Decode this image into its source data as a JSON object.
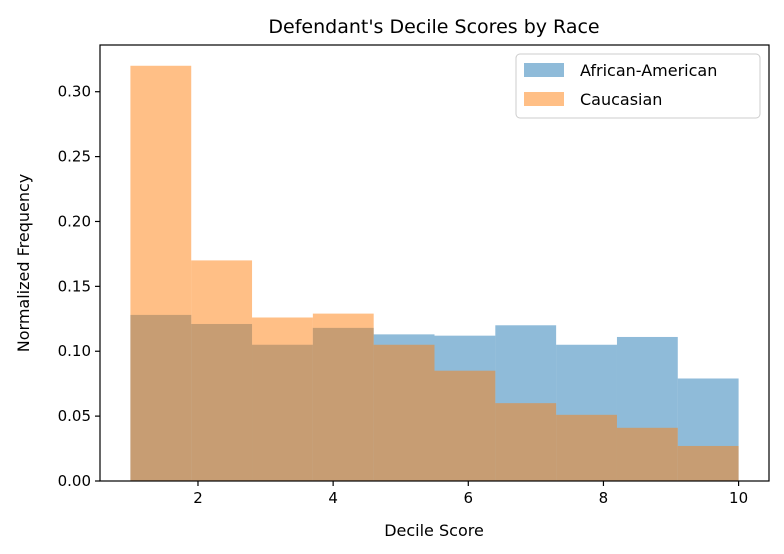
{
  "chart_data": {
    "type": "histogram",
    "title": "Defendant's Decile Scores by Race",
    "xlabel": "Decile Score",
    "ylabel": "Normalized Frequency",
    "xlim": [
      0.55,
      10.45
    ],
    "ylim": [
      0,
      0.336
    ],
    "xticks": [
      2,
      4,
      6,
      8,
      10
    ],
    "yticks": [
      0.0,
      0.05,
      0.1,
      0.15,
      0.2,
      0.25,
      0.3
    ],
    "ytick_labels": [
      "0.00",
      "0.05",
      "0.10",
      "0.15",
      "0.20",
      "0.25",
      "0.30"
    ],
    "bin_edges": [
      1.0,
      1.9,
      2.8,
      3.7,
      4.6,
      5.5,
      6.4,
      7.3,
      8.2,
      9.1,
      10.0
    ],
    "legend_position": "top-right",
    "grid": false,
    "series": [
      {
        "name": "African-American",
        "color": "#1f77b4",
        "alpha": 0.5,
        "values": [
          0.128,
          0.121,
          0.105,
          0.118,
          0.113,
          0.112,
          0.12,
          0.105,
          0.111,
          0.079
        ]
      },
      {
        "name": "Caucasian",
        "color": "#ff7f0e",
        "alpha": 0.5,
        "values": [
          0.32,
          0.17,
          0.126,
          0.129,
          0.105,
          0.085,
          0.06,
          0.051,
          0.041,
          0.027
        ]
      }
    ]
  }
}
